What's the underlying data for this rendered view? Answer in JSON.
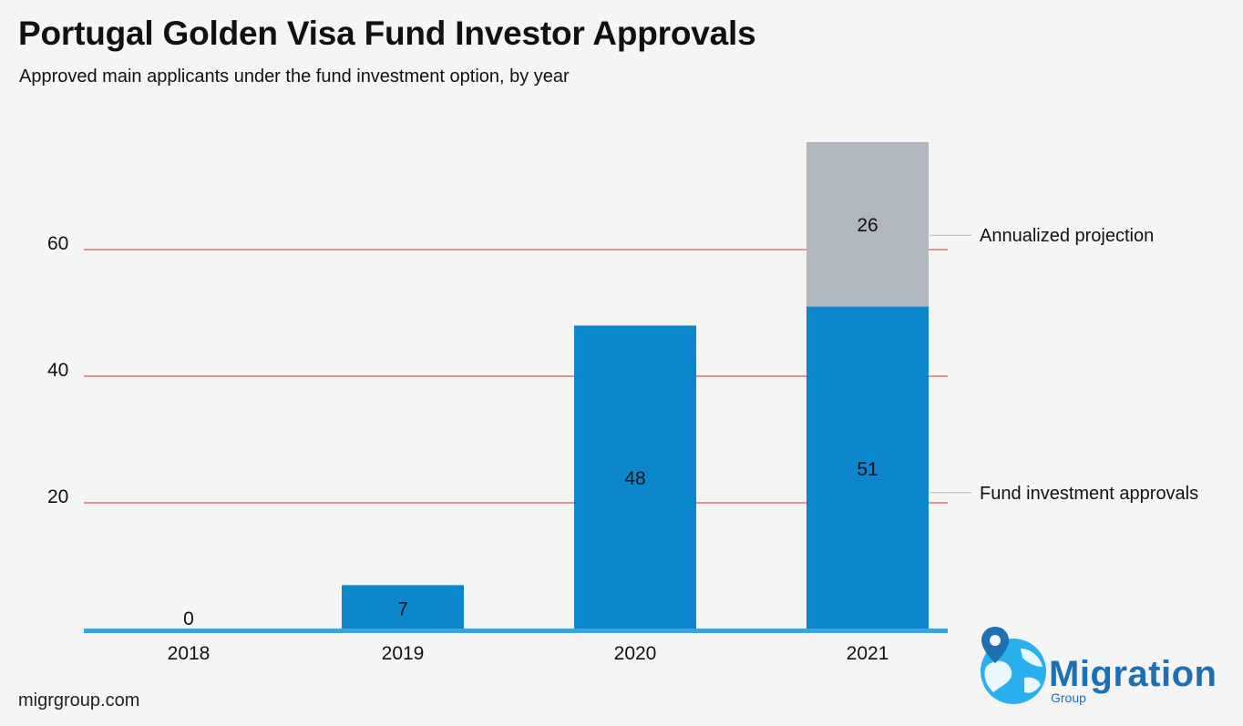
{
  "colors": {
    "actual": "#0c87cc",
    "projection": "#b0b7bf",
    "gridline": "#c8343b",
    "baseline": "#3ea3dc",
    "logo": "#1f6fb3",
    "logo_light": "#2ab0ee"
  },
  "chart_data": {
    "type": "bar",
    "stacked": true,
    "title": "Portugal Golden Visa Fund Investor Approvals",
    "subtitle": "Approved main applicants under the fund investment option, by year",
    "categories": [
      "2018",
      "2019",
      "2020",
      "2021"
    ],
    "series": [
      {
        "name": "Fund investment approvals",
        "values": [
          0,
          7,
          48,
          51
        ]
      },
      {
        "name": "Annualized projection",
        "values": [
          0,
          0,
          0,
          26
        ]
      }
    ],
    "data_labels": {
      "actual": [
        "0",
        "7",
        "48",
        "51"
      ],
      "projection": [
        "",
        "",
        "",
        "26"
      ]
    },
    "yticks": [
      20,
      40,
      60
    ],
    "ytick_labels": [
      "20",
      "40",
      "60"
    ],
    "ylim": [
      0,
      77
    ],
    "grid": true,
    "legend_placement": "right"
  },
  "footer": {
    "source": "migrgroup.com"
  },
  "logo": {
    "name": "Migration",
    "sub": "Group",
    "icon": "globe-pin-icon"
  }
}
